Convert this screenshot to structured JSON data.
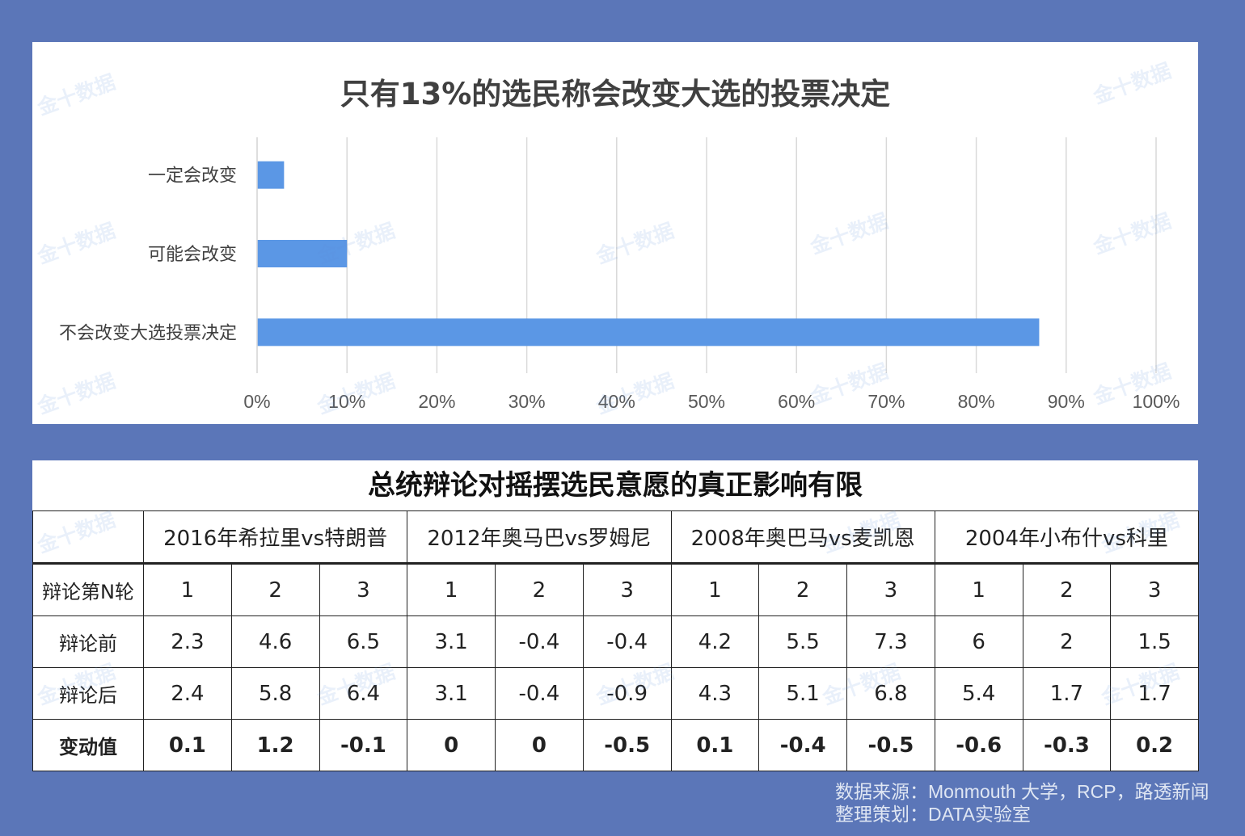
{
  "chart": {
    "title": "只有13%的选民称会改变大选的投票决定"
  },
  "chart_data": {
    "type": "bar",
    "orientation": "horizontal",
    "categories": [
      "一定会改变",
      "可能会改变",
      "不会改变大选投票决定"
    ],
    "values": [
      3,
      10,
      87
    ],
    "unit": "%",
    "xlim": [
      0,
      100
    ],
    "x_ticks": [
      "0%",
      "10%",
      "20%",
      "30%",
      "40%",
      "50%",
      "60%",
      "70%",
      "80%",
      "90%",
      "100%"
    ],
    "grid": true,
    "bar_color": "#5b97e5"
  },
  "table": {
    "title": "总统辩论对摇摆选民意愿的真正影响有限",
    "groups": [
      "2016年希拉里vs特朗普",
      "2012年奥马巴vs罗姆尼",
      "2008年奥巴马vs麦凯恩",
      "2004年小布什vs科里"
    ],
    "rows": [
      {
        "label": "辩论第N轮",
        "values": [
          "1",
          "2",
          "3",
          "1",
          "2",
          "3",
          "1",
          "2",
          "3",
          "1",
          "2",
          "3"
        ],
        "bold": false
      },
      {
        "label": "辩论前",
        "values": [
          "2.3",
          "4.6",
          "6.5",
          "3.1",
          "-0.4",
          "-0.4",
          "4.2",
          "5.5",
          "7.3",
          "6",
          "2",
          "1.5"
        ],
        "bold": false
      },
      {
        "label": "辩论后",
        "values": [
          "2.4",
          "5.8",
          "6.4",
          "3.1",
          "-0.4",
          "-0.9",
          "4.3",
          "5.1",
          "6.8",
          "5.4",
          "1.7",
          "1.7"
        ],
        "bold": false
      },
      {
        "label": "变动值",
        "values": [
          "0.1",
          "1.2",
          "-0.1",
          "0",
          "0",
          "-0.5",
          "0.1",
          "-0.4",
          "-0.5",
          "-0.6",
          "-0.3",
          "0.2"
        ],
        "bold": true
      }
    ]
  },
  "source": {
    "line1": "数据来源：Monmouth 大学，RCP，路透新闻",
    "line2": "整理策划：DATA实验室"
  },
  "watermark": "金十数据"
}
